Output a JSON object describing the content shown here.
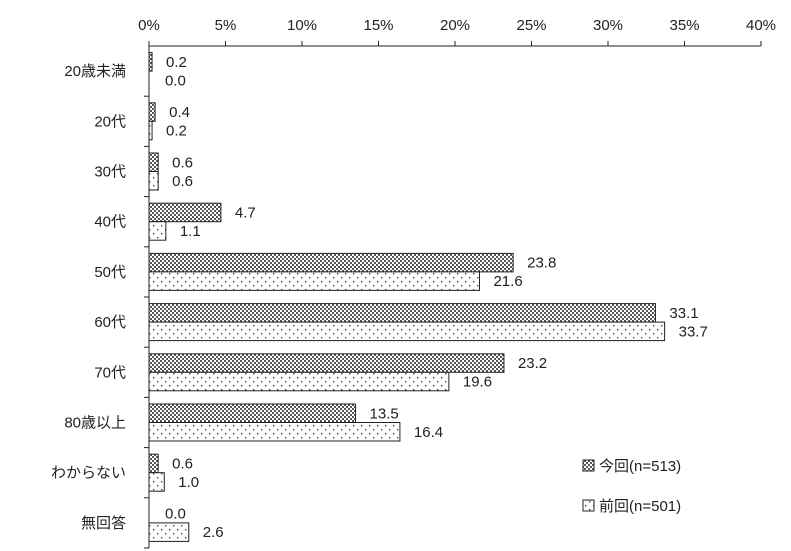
{
  "chart_data": {
    "type": "bar",
    "orientation": "horizontal",
    "categories": [
      "20歳未満",
      "20代",
      "30代",
      "40代",
      "50代",
      "60代",
      "70代",
      "80歳以上",
      "わからない",
      "無回答"
    ],
    "series": [
      {
        "name": "今回(n=513)",
        "values": [
          0.2,
          0.4,
          0.6,
          4.7,
          23.8,
          33.1,
          23.2,
          13.5,
          0.6,
          0.0
        ],
        "labels": [
          "0.2",
          "0.4",
          "0.6",
          "4.7",
          "23.8",
          "33.1",
          "23.2",
          "13.5",
          "0.6",
          "0.0"
        ],
        "pattern": "crosshatch"
      },
      {
        "name": "前回(n=501)",
        "values": [
          0.0,
          0.2,
          0.6,
          1.1,
          21.6,
          33.7,
          19.6,
          16.4,
          1.0,
          2.6
        ],
        "labels": [
          "0.0",
          "0.2",
          "0.6",
          "1.1",
          "21.6",
          "33.7",
          "19.6",
          "16.4",
          "1.0",
          "2.6"
        ],
        "pattern": "dots"
      }
    ],
    "x_ticks": [
      "0%",
      "5%",
      "10%",
      "15%",
      "20%",
      "25%",
      "30%",
      "35%",
      "40%"
    ],
    "xlim": [
      0,
      40
    ],
    "axis_position": "top",
    "grid": false,
    "legend_position": "bottom-right",
    "colors": {
      "bar_outline": "#222222",
      "pattern_fill": "#555555",
      "dot_fill": "#444444",
      "background": "#ffffff"
    }
  }
}
